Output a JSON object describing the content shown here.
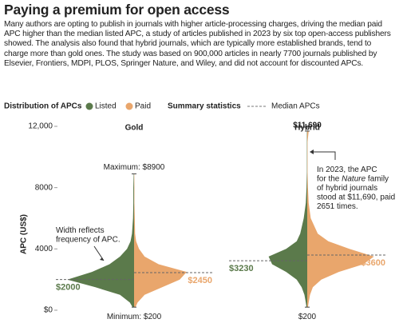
{
  "chart_data": {
    "type": "violin",
    "title": "Paying a premium for open access",
    "subtitle": "Many authors are opting to publish in journals with higher article-processing charges, driving the median paid APC higher than the median listed APC, a study of articles published in 2023 by six top open-access publishers showed. The analysis also found that hybrid journals, which are typically more established brands, tend to charge more than gold ones. The study was based on 900,000 articles in nearly 7700 journals published by Elsevier, Frontiers, MDPI, PLOS, Springer Nature, and Wiley, and did not account for discounted APCs.",
    "legend_title": "Distribution of APCs",
    "stats_title": "Summary statistics",
    "median_label": "Median APCs",
    "y_label": "APC (US$)",
    "ylim": [
      0,
      12000
    ],
    "yticks": [
      {
        "value": 0,
        "label": "$0"
      },
      4000,
      8000,
      {
        "value": 12000,
        "label": "12,000"
      }
    ],
    "series": [
      {
        "name": "Listed",
        "color": "#5b7a4b"
      },
      {
        "name": "Paid",
        "color": "#e9a66c"
      }
    ],
    "panels": [
      {
        "title": "Gold",
        "y_grid": [
          200,
          500,
          1000,
          1500,
          2000,
          2500,
          3000,
          3500,
          4000,
          4500,
          5000,
          6000,
          7000,
          8000,
          8900
        ],
        "densities": [
          [
            0.02,
            0.06,
            0.2,
            0.55,
            0.95,
            0.6,
            0.35,
            0.2,
            0.1,
            0.05,
            0.03,
            0.015,
            0.01,
            0.01,
            0.005
          ],
          [
            0.02,
            0.05,
            0.15,
            0.4,
            0.65,
            0.75,
            0.35,
            0.15,
            0.07,
            0.03,
            0.015,
            0.01,
            0.005,
            0.005,
            0.003
          ]
        ],
        "medians": [
          2000,
          2450
        ],
        "median_labels": [
          "$2000",
          "$2450"
        ],
        "max": 8900,
        "max_label": "Maximum: $8900",
        "min": 200,
        "min_label": "Minimum: $200",
        "note": [
          [
            "Width reflects"
          ],
          [
            "frequency of APC."
          ]
        ]
      },
      {
        "title": "Hybrid",
        "y_grid": [
          200,
          500,
          1000,
          1500,
          2000,
          2500,
          3000,
          3500,
          4000,
          4500,
          5000,
          6000,
          7000,
          8000,
          9000,
          10000,
          11000,
          11690
        ],
        "densities": [
          [
            0.01,
            0.02,
            0.04,
            0.08,
            0.15,
            0.3,
            0.5,
            0.55,
            0.3,
            0.15,
            0.1,
            0.05,
            0.02,
            0.01,
            0.005,
            0.005,
            0.005,
            0.005
          ],
          [
            0.01,
            0.02,
            0.04,
            0.08,
            0.2,
            0.45,
            0.8,
            0.95,
            0.6,
            0.3,
            0.15,
            0.05,
            0.02,
            0.01,
            0.005,
            0.005,
            0.005,
            0.02
          ]
        ],
        "medians": [
          3230,
          3600
        ],
        "median_labels": [
          "$3230",
          "$3600"
        ],
        "max": 11690,
        "max_label": "$11,690",
        "min": 200,
        "min_label": "$200",
        "note": [
          [
            "In 2023, the APC"
          ],
          [
            "for the ",
            {
              "text": "Nature",
              "italic": true
            },
            " family"
          ],
          [
            "of hybrid journals"
          ],
          [
            "stood at $11,690, paid"
          ],
          [
            "2651 times."
          ]
        ]
      }
    ]
  }
}
